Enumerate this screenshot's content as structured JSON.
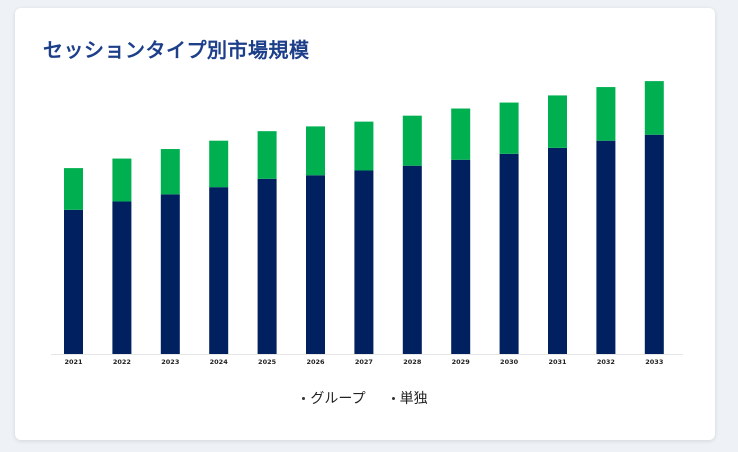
{
  "title": "セッションタイプ別市場規模",
  "colors": {
    "series0": "#00205f",
    "series1": "#00b050"
  },
  "chart_data": {
    "type": "bar",
    "stacked": true,
    "title": "セッションタイプ別市場規模",
    "categories": [
      "2021",
      "2022",
      "2023",
      "2024",
      "2025",
      "2026",
      "2027",
      "2028",
      "2029",
      "2030",
      "2031",
      "2032",
      "2033"
    ],
    "series": [
      {
        "name": "グループ",
        "values": [
          121,
          128,
          134,
          140,
          147,
          150,
          154,
          158,
          163,
          168,
          173,
          179,
          184
        ]
      },
      {
        "name": "単独",
        "values": [
          35,
          36,
          38,
          39,
          40,
          41,
          41,
          42,
          43,
          43,
          44,
          45,
          45
        ]
      }
    ],
    "xlabel": "",
    "ylabel": "",
    "ylim": [
      0,
      240
    ],
    "grid": false,
    "legend": "bottom"
  }
}
